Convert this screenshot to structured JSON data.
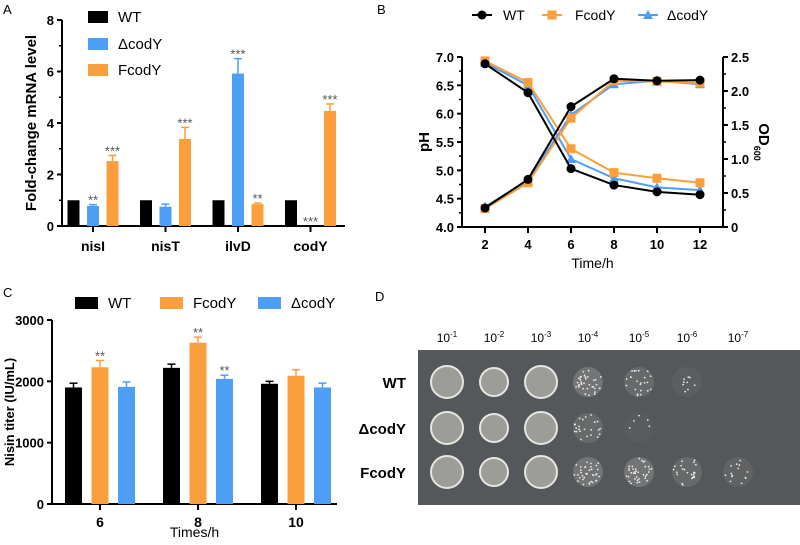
{
  "colors": {
    "wt": "#000000",
    "deltacodY": "#4f9ef5",
    "fcodY": "#fb9f3c",
    "plate": "#55585a"
  },
  "panel_labels": [
    "A",
    "B",
    "C",
    "D"
  ],
  "chart_data": [
    {
      "type": "bar",
      "panel": "A",
      "ylabel": "Fold-change mRNA level",
      "xlabel": "",
      "ylim": [
        0,
        8
      ],
      "yticks": [
        "0",
        "2",
        "4",
        "6",
        "8"
      ],
      "categories": [
        "nisI",
        "nisT",
        "ilvD",
        "codY"
      ],
      "legend": [
        "WT",
        "ΔcodY",
        "FcodY"
      ],
      "legend_position": "top-left",
      "series": [
        {
          "name": "WT",
          "color_key": "wt",
          "values": [
            1,
            1,
            1,
            1
          ],
          "errors": [
            0,
            0,
            0,
            0
          ],
          "sig": [
            "",
            "",
            "",
            ""
          ]
        },
        {
          "name": "ΔcodY",
          "color_key": "deltacodY",
          "values": [
            0.78,
            0.75,
            5.92,
            0
          ],
          "errors": [
            0.05,
            0.1,
            0.58,
            0
          ],
          "sig": [
            "**",
            "",
            "***",
            "***"
          ]
        },
        {
          "name": "FcodY",
          "color_key": "fcodY",
          "values": [
            2.52,
            3.38,
            0.85,
            4.47
          ],
          "errors": [
            0.22,
            0.45,
            0.04,
            0.27
          ],
          "sig": [
            "***",
            "***",
            "**",
            "***"
          ]
        }
      ]
    },
    {
      "type": "line",
      "panel": "B",
      "xlabel": "Time/h",
      "ylabel": "pH",
      "ylabel_right": "OD",
      "ylabel_right_sub": "600",
      "x": [
        2,
        4,
        6,
        8,
        10,
        12
      ],
      "xticks": [
        "2",
        "4",
        "6",
        "8",
        "10",
        "12"
      ],
      "ylim": [
        4.0,
        7.0
      ],
      "yticks": [
        "4.0",
        "4.5",
        "5.0",
        "5.5",
        "6.0",
        "6.5",
        "7.0"
      ],
      "ylim_right": [
        0,
        2.5
      ],
      "yticks_right": [
        "0",
        "0.5",
        "1.0",
        "1.5",
        "2.0",
        "2.5"
      ],
      "legend": [
        "WT",
        "FcodY",
        "ΔcodY"
      ],
      "legend_position": "top",
      "series": [
        {
          "name": "WT",
          "color_key": "wt",
          "marker": "circle",
          "pH": [
            6.88,
            6.37,
            5.03,
            4.74,
            4.62,
            4.57
          ],
          "OD600": [
            0.28,
            0.7,
            1.77,
            2.18,
            2.15,
            2.16
          ]
        },
        {
          "name": "FcodY",
          "color_key": "fcodY",
          "marker": "square",
          "pH": [
            6.93,
            6.55,
            5.38,
            4.96,
            4.86,
            4.78
          ],
          "OD600": [
            0.27,
            0.65,
            1.6,
            2.15,
            2.14,
            2.12
          ]
        },
        {
          "name": "ΔcodY",
          "color_key": "deltacodY",
          "marker": "triangle",
          "pH": [
            6.9,
            6.5,
            5.2,
            4.86,
            4.7,
            4.65
          ],
          "OD600": [
            0.3,
            0.68,
            1.65,
            2.1,
            2.15,
            2.1
          ]
        }
      ]
    },
    {
      "type": "bar",
      "panel": "C",
      "ylabel": "Nisin titer (IU/mL)",
      "xlabel": "Times/h",
      "ylim": [
        0,
        3000
      ],
      "yticks": [
        "0",
        "1000",
        "2000",
        "3000"
      ],
      "categories": [
        "6",
        "8",
        "10"
      ],
      "legend": [
        "WT",
        "FcodY",
        "ΔcodY"
      ],
      "legend_position": "top",
      "series": [
        {
          "name": "WT",
          "color_key": "wt",
          "values": [
            1900,
            2220,
            1960
          ],
          "errors": [
            70,
            60,
            40
          ],
          "sig": [
            "",
            "",
            ""
          ]
        },
        {
          "name": "FcodY",
          "color_key": "fcodY",
          "values": [
            2230,
            2630,
            2090
          ],
          "errors": [
            110,
            90,
            100
          ],
          "sig": [
            "**",
            "**",
            ""
          ]
        },
        {
          "name": "ΔcodY",
          "color_key": "deltacodY",
          "values": [
            1910,
            2040,
            1900
          ],
          "errors": [
            80,
            60,
            70
          ],
          "sig": [
            "",
            "**",
            ""
          ]
        }
      ]
    }
  ],
  "plate": {
    "panel": "D",
    "dilutions": [
      {
        "base": "10",
        "exp": "-1"
      },
      {
        "base": "10",
        "exp": "-2"
      },
      {
        "base": "10",
        "exp": "-3"
      },
      {
        "base": "10",
        "exp": "-4"
      },
      {
        "base": "10",
        "exp": "-5"
      },
      {
        "base": "10",
        "exp": "-6"
      },
      {
        "base": "10",
        "exp": "-7"
      }
    ],
    "strains": [
      "WT",
      "ΔcodY",
      "FcodY"
    ]
  }
}
